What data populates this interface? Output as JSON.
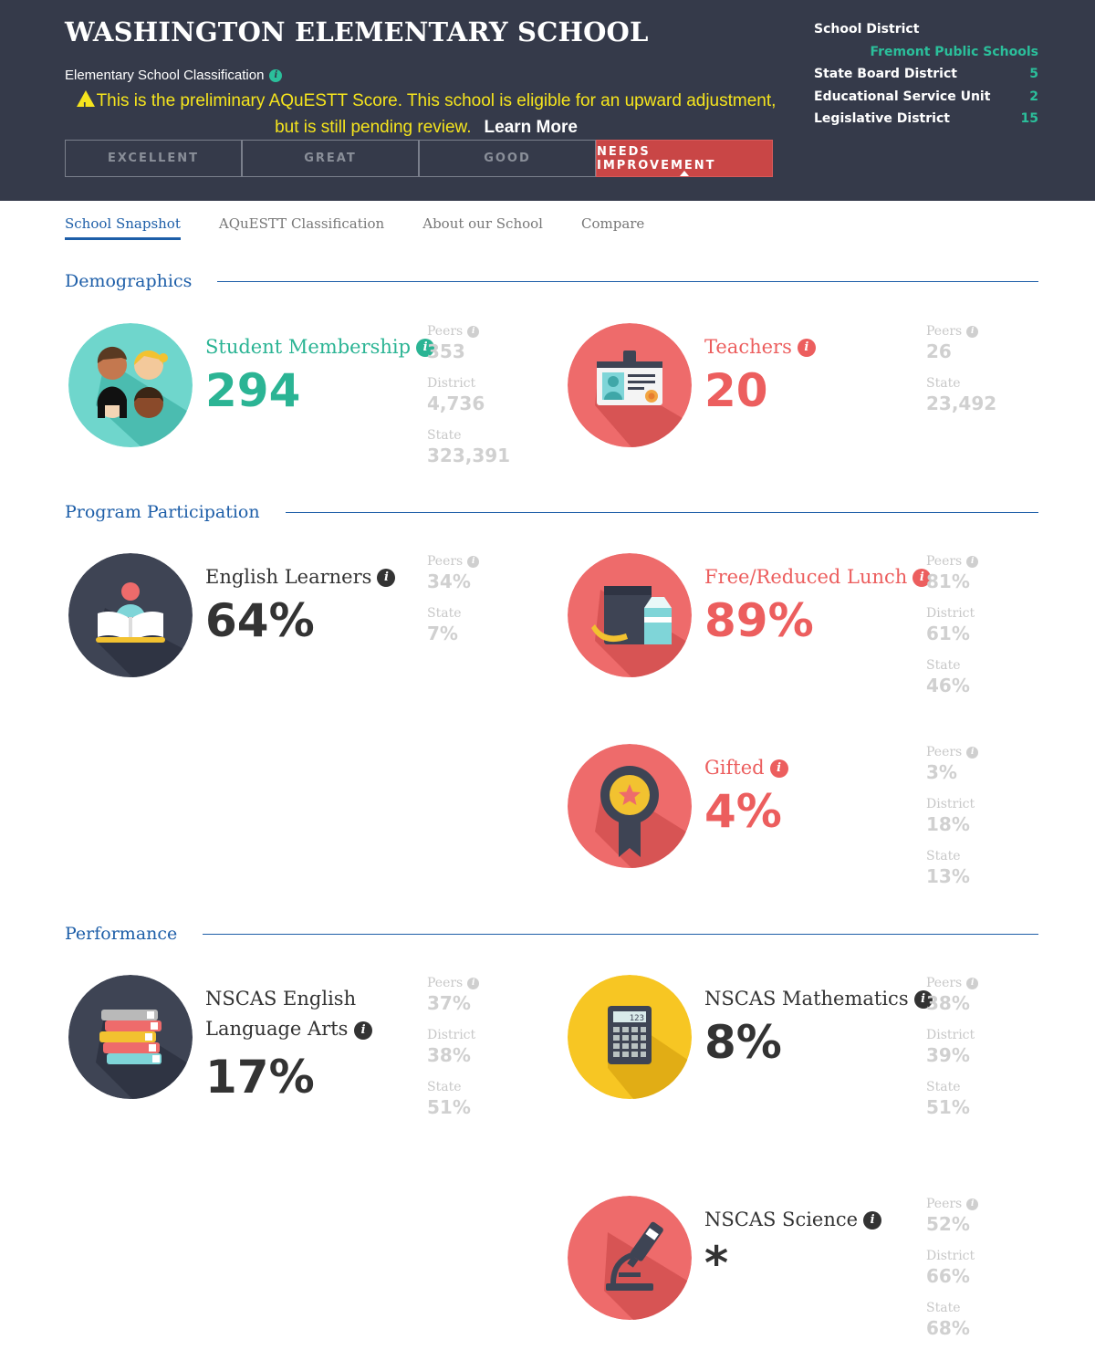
{
  "header": {
    "school_name": "WASHINGTON ELEMENTARY SCHOOL",
    "classification_label": "Elementary School Classification",
    "notice_line1": "This is the preliminary AQuESTT Score. This school is eligible for an upward adjustment,",
    "notice_line2": "but is still pending review.",
    "learn_more": "Learn More",
    "ratings": [
      "EXCELLENT",
      "GREAT",
      "GOOD",
      "NEEDS IMPROVEMENT"
    ],
    "active_rating": "NEEDS IMPROVEMENT"
  },
  "district_info": {
    "school_district_label": "School District",
    "school_district_value": "Fremont Public Schools",
    "state_board_label": "State Board District",
    "state_board_value": "5",
    "esu_label": "Educational Service Unit",
    "esu_value": "2",
    "legislative_label": "Legislative District",
    "legislative_value": "15"
  },
  "tabs": [
    "School Snapshot",
    "AQuESTT Classification",
    "About our School",
    "Compare"
  ],
  "sections": {
    "demographics": "Demographics",
    "program": "Program Participation",
    "performance": "Performance"
  },
  "metrics": {
    "student_membership": {
      "label": "Student Membership",
      "value": "294",
      "peers_label": "Peers",
      "peers": "353",
      "district_label": "District",
      "district": "4,736",
      "state_label": "State",
      "state": "323,391"
    },
    "teachers": {
      "label": "Teachers",
      "value": "20",
      "peers_label": "Peers",
      "peers": "26",
      "state_label": "State",
      "state": "23,492"
    },
    "english_learners": {
      "label": "English Learners",
      "value": "64%",
      "peers_label": "Peers",
      "peers": "34%",
      "state_label": "State",
      "state": "7%"
    },
    "free_lunch": {
      "label": "Free/Reduced Lunch",
      "value": "89%",
      "peers_label": "Peers",
      "peers": "81%",
      "district_label": "District",
      "district": "61%",
      "state_label": "State",
      "state": "46%"
    },
    "gifted": {
      "label": "Gifted",
      "value": "4%",
      "peers_label": "Peers",
      "peers": "3%",
      "district_label": "District",
      "district": "18%",
      "state_label": "State",
      "state": "13%"
    },
    "ela": {
      "label_line1": "NSCAS English",
      "label_line2": "Language Arts",
      "value": "17%",
      "peers_label": "Peers",
      "peers": "37%",
      "district_label": "District",
      "district": "38%",
      "state_label": "State",
      "state": "51%"
    },
    "math": {
      "label": "NSCAS Mathematics",
      "value": "8%",
      "calculator_display": "123",
      "peers_label": "Peers",
      "peers": "38%",
      "district_label": "District",
      "district": "39%",
      "state_label": "State",
      "state": "51%"
    },
    "science": {
      "label": "NSCAS Science",
      "value": "*",
      "peers_label": "Peers",
      "peers": "52%",
      "district_label": "District",
      "district": "66%",
      "state_label": "State",
      "state": "68%"
    }
  },
  "icons": {
    "info": "info-icon",
    "warning": "warning-icon",
    "student_membership": "students-faces-icon",
    "teachers": "id-badge-icon",
    "english_learners": "reading-book-icon",
    "free_lunch": "lunch-bag-icon",
    "gifted": "award-ribbon-icon",
    "ela": "book-stack-icon",
    "math": "calculator-icon",
    "science": "microscope-icon"
  },
  "colors": {
    "header_bg": "#353a4a",
    "accent_teal": "#2bb494",
    "accent_red": "#ec5e5e",
    "notice_yellow": "#f5e41d",
    "link_blue": "#1d5ea8",
    "needs_improvement": "#c94646"
  }
}
